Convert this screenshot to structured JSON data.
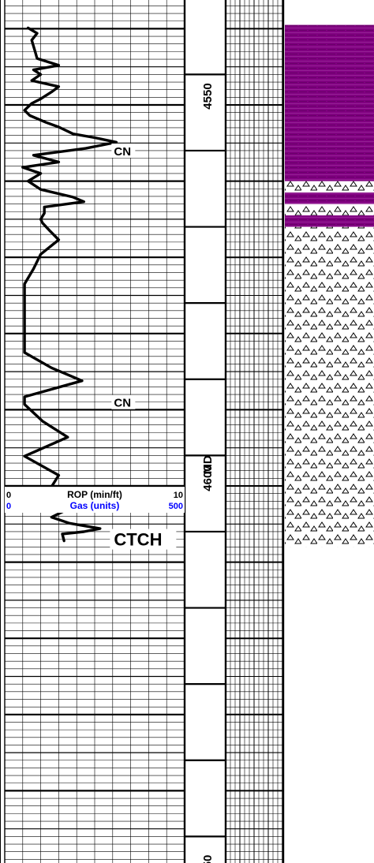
{
  "chart_data": {
    "type": "line",
    "depth_ticks": [
      "4550",
      "4600",
      "MD",
      "50"
    ],
    "curves": [
      {
        "name": "ROP (min/ft)",
        "color": "#000000",
        "scale_min": "0",
        "scale_max": "10",
        "depth": [
          4539.9,
          4540.6,
          4541.5,
          4542.3,
          4543.1,
          4543.9,
          4544.8,
          4545.4,
          4546.0,
          4546.8,
          4547.6,
          4548.3,
          4549.2,
          4549.8,
          4550.7,
          4551.4,
          4552.3,
          4552.9,
          4553.8,
          4554.3,
          4554.9,
          4555.7,
          4556.6,
          4557.5,
          4558.2,
          4559.0,
          4560.0,
          4561.1,
          4562.1,
          4562.7,
          4563.4,
          4564.2,
          4565.0,
          4565.5,
          4566.5,
          4567.7,
          4569.6,
          4571.5,
          4573.5,
          4575.6,
          4577.6,
          4579.7,
          4581.3,
          4582.5,
          4584.5,
          4586.2,
          4588.3,
          4589.3,
          4591.5,
          4593.6,
          4596.1,
          4598.6,
          4600.1,
          4601.1,
          4602.0,
          4602.5,
          4603.3,
          4604.1,
          4604.9,
          4605.6,
          4606.0,
          4606.3,
          4607.2
        ],
        "rop": [
          1.3,
          1.8,
          1.5,
          1.6,
          1.7,
          1.8,
          3.0,
          1.6,
          2.0,
          1.5,
          3.0,
          2.6,
          2.0,
          1.5,
          1.1,
          1.4,
          2.3,
          3.0,
          3.8,
          5.0,
          6.2,
          4.5,
          1.6,
          3.0,
          1.0,
          2.0,
          1.3,
          2.0,
          3.8,
          4.4,
          2.2,
          2.2,
          2.0,
          2.1,
          2.5,
          3.0,
          2.0,
          1.6,
          1.1,
          1.1,
          1.1,
          1.1,
          1.1,
          1.1,
          2.6,
          4.3,
          1.1,
          1.1,
          2.1,
          3.5,
          1.1,
          3.0,
          2.6,
          1.1,
          1.4,
          1.9,
          3.3,
          2.6,
          3.6,
          5.3,
          4.4,
          3.2,
          3.3
        ]
      },
      {
        "name": "Gas (units)",
        "color": "#0000ff",
        "scale_min": "0",
        "scale_max": "500",
        "depth": [],
        "values": []
      }
    ],
    "annotations": [
      {
        "text": "CN",
        "depth": 4556.0,
        "rop": 6.2
      },
      {
        "text": "CN",
        "depth": 4589.0,
        "rop": 6.2
      },
      {
        "text": "CTCH",
        "depth": 4607.0,
        "rop": 6.2,
        "large": true
      }
    ],
    "lithology": [
      {
        "top": 4539.5,
        "base": 4560.0,
        "type": "shale",
        "color": "#800080"
      },
      {
        "top": 4560.0,
        "base": 4561.5,
        "type": "chert",
        "color": "#ffffff"
      },
      {
        "top": 4561.5,
        "base": 4563.0,
        "type": "shale",
        "color": "#800080"
      },
      {
        "top": 4563.0,
        "base": 4564.5,
        "type": "chert",
        "color": "#ffffff"
      },
      {
        "top": 4564.5,
        "base": 4566.0,
        "type": "shale",
        "color": "#800080"
      },
      {
        "top": 4566.0,
        "base": 4608.0,
        "type": "chert",
        "color": "#ffffff"
      }
    ]
  }
}
